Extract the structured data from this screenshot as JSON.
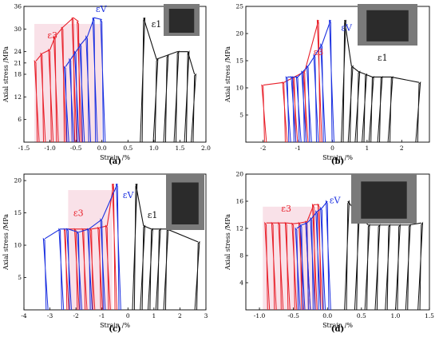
{
  "colors": {
    "e3": "#e8202a",
    "ev": "#1a2fe0",
    "e1": "#111111",
    "pink": "#f4c9d6",
    "brown": "#8b4a22"
  },
  "chart_data": [
    {
      "type": "line",
      "panel": "(a)",
      "xlabel": "Strain /%",
      "ylabel": "Axial stress /MPa",
      "xlim": [
        -1.5,
        2.0
      ],
      "ylim": [
        0,
        36
      ],
      "xticks": [
        "-1.5",
        "-1.0",
        "-0.5",
        "0.0",
        "0.5",
        "1.0",
        "1.5",
        "2.0"
      ],
      "yticks": [
        "6",
        "12",
        "18",
        "21",
        "24",
        "30",
        "36"
      ],
      "annotations": [
        {
          "text": "ε3",
          "series": "e3"
        },
        {
          "text": "εV",
          "series": "ev"
        },
        {
          "text": "ε1",
          "series": "e1"
        }
      ],
      "peak_stress": 33,
      "series": [
        {
          "key": "e3",
          "cycles": [
            [
              -1.27,
              21.5
            ],
            [
              -1.15,
              23.5
            ],
            [
              -1.0,
              24.5
            ],
            [
              -0.9,
              28
            ],
            [
              -0.75,
              30.5
            ],
            [
              -0.55,
              33
            ],
            [
              -0.45,
              32
            ]
          ]
        },
        {
          "key": "ev",
          "cycles": [
            [
              -0.7,
              20
            ],
            [
              -0.6,
              22
            ],
            [
              -0.5,
              24
            ],
            [
              -0.4,
              26
            ],
            [
              -0.28,
              28
            ],
            [
              -0.15,
              33
            ],
            [
              0.0,
              32.5
            ]
          ]
        },
        {
          "key": "e1",
          "cycles": [
            [
              0.05,
              0
            ],
            [
              0.3,
              0
            ],
            [
              0.55,
              0
            ],
            [
              0.8,
              33
            ],
            [
              1.05,
              22
            ],
            [
              1.25,
              23
            ],
            [
              1.45,
              24
            ],
            [
              1.65,
              24
            ],
            [
              1.78,
              18
            ]
          ]
        }
      ]
    },
    {
      "type": "line",
      "panel": "(b)",
      "xlabel": "Strain /%",
      "ylabel": "Axial stress /MPa",
      "xlim": [
        -2.5,
        2.8
      ],
      "ylim": [
        0,
        25
      ],
      "xticks": [
        "-2",
        "-1",
        "0",
        "1",
        "2"
      ],
      "yticks": [
        "5",
        "10",
        "15",
        "20",
        "25"
      ],
      "annotations": [
        {
          "text": "ε3",
          "series": "e3"
        },
        {
          "text": "εV",
          "series": "ev"
        },
        {
          "text": "ε1",
          "series": "e1"
        }
      ],
      "peak_stress": 22.5,
      "series": [
        {
          "key": "e3",
          "cycles": [
            [
              -2.0,
              10.5
            ],
            [
              -1.4,
              11
            ],
            [
              -1.1,
              12
            ],
            [
              -0.8,
              13
            ],
            [
              -0.4,
              22.5
            ]
          ]
        },
        {
          "key": "ev",
          "cycles": [
            [
              -1.3,
              12
            ],
            [
              -1.15,
              12
            ],
            [
              -1.0,
              12
            ],
            [
              -0.85,
              13
            ],
            [
              -0.7,
              14
            ],
            [
              -0.5,
              16
            ],
            [
              -0.3,
              18
            ],
            [
              -0.05,
              22.5
            ]
          ]
        },
        {
          "key": "e1",
          "cycles": [
            [
              0.1,
              0
            ],
            [
              0.35,
              22.5
            ],
            [
              0.55,
              14
            ],
            [
              0.75,
              13
            ],
            [
              0.95,
              12.5
            ],
            [
              1.15,
              12
            ],
            [
              1.4,
              12
            ],
            [
              1.7,
              12
            ],
            [
              2.5,
              11
            ]
          ]
        }
      ]
    },
    {
      "type": "line",
      "panel": "(c)",
      "xlabel": "Strain /%",
      "ylabel": "Axial stress /MPa",
      "xlim": [
        -4.0,
        3.0
      ],
      "ylim": [
        0,
        21
      ],
      "xticks": [
        "-4",
        "-3",
        "-2",
        "-1",
        "0",
        "1",
        "2",
        "3"
      ],
      "yticks": [
        "5",
        "10",
        "15",
        "20"
      ],
      "annotations": [
        {
          "text": "ε3",
          "series": "e3"
        },
        {
          "text": "εV",
          "series": "ev"
        },
        {
          "text": "ε1",
          "series": "e1"
        }
      ],
      "peak_stress": 19.5,
      "series": [
        {
          "key": "e3",
          "cycles": [
            [
              -2.4,
              12.5
            ],
            [
              -2.0,
              12.5
            ],
            [
              -1.7,
              12.5
            ],
            [
              -1.4,
              12.5
            ],
            [
              -1.1,
              12.7
            ],
            [
              -0.8,
              13
            ],
            [
              -0.55,
              19.5
            ]
          ]
        },
        {
          "key": "ev",
          "cycles": [
            [
              -3.2,
              11
            ],
            [
              -2.6,
              12.5
            ],
            [
              -2.3,
              12.5
            ],
            [
              -1.9,
              12
            ],
            [
              -1.5,
              12.5
            ],
            [
              -1.0,
              14
            ],
            [
              -0.4,
              19.5
            ]
          ]
        },
        {
          "key": "e1",
          "cycles": [
            [
              0.0,
              0
            ],
            [
              0.3,
              19.5
            ],
            [
              0.6,
              13
            ],
            [
              0.9,
              12.5
            ],
            [
              1.2,
              12.5
            ],
            [
              1.5,
              12.5
            ],
            [
              2.7,
              10.5
            ]
          ]
        }
      ]
    },
    {
      "type": "line",
      "panel": "(d)",
      "xlabel": "Strain /%",
      "ylabel": "Axial stress /MPa",
      "xlim": [
        -1.2,
        1.5
      ],
      "ylim": [
        0,
        20
      ],
      "xticks": [
        "-1.0",
        "-0.5",
        "0.0",
        "0.5",
        "1.0",
        "1.5"
      ],
      "yticks": [
        "4",
        "8",
        "12",
        "16",
        "20"
      ],
      "annotations": [
        {
          "text": "ε3",
          "series": "e3"
        },
        {
          "text": "εV",
          "series": "ev"
        },
        {
          "text": "ε1",
          "series": "e1"
        }
      ],
      "peak_stress": 16,
      "series": [
        {
          "key": "e3",
          "cycles": [
            [
              -0.9,
              12.8
            ],
            [
              -0.8,
              12.8
            ],
            [
              -0.7,
              12.8
            ],
            [
              -0.6,
              12.8
            ],
            [
              -0.5,
              12.7
            ],
            [
              -0.4,
              12.8
            ],
            [
              -0.3,
              13
            ],
            [
              -0.2,
              15.5
            ],
            [
              -0.12,
              15.5
            ]
          ]
        },
        {
          "key": "ev",
          "cycles": [
            [
              -0.45,
              12
            ],
            [
              -0.38,
              12.5
            ],
            [
              -0.3,
              12.8
            ],
            [
              -0.23,
              13.5
            ],
            [
              -0.15,
              14.5
            ],
            [
              -0.08,
              15
            ],
            [
              0.0,
              16
            ]
          ]
        },
        {
          "key": "e1",
          "cycles": [
            [
              0.1,
              0
            ],
            [
              0.3,
              16
            ],
            [
              0.45,
              14
            ],
            [
              0.6,
              12.5
            ],
            [
              0.75,
              12.5
            ],
            [
              0.9,
              12.5
            ],
            [
              1.05,
              12.5
            ],
            [
              1.2,
              12.5
            ],
            [
              1.38,
              12.8
            ]
          ]
        }
      ]
    }
  ]
}
